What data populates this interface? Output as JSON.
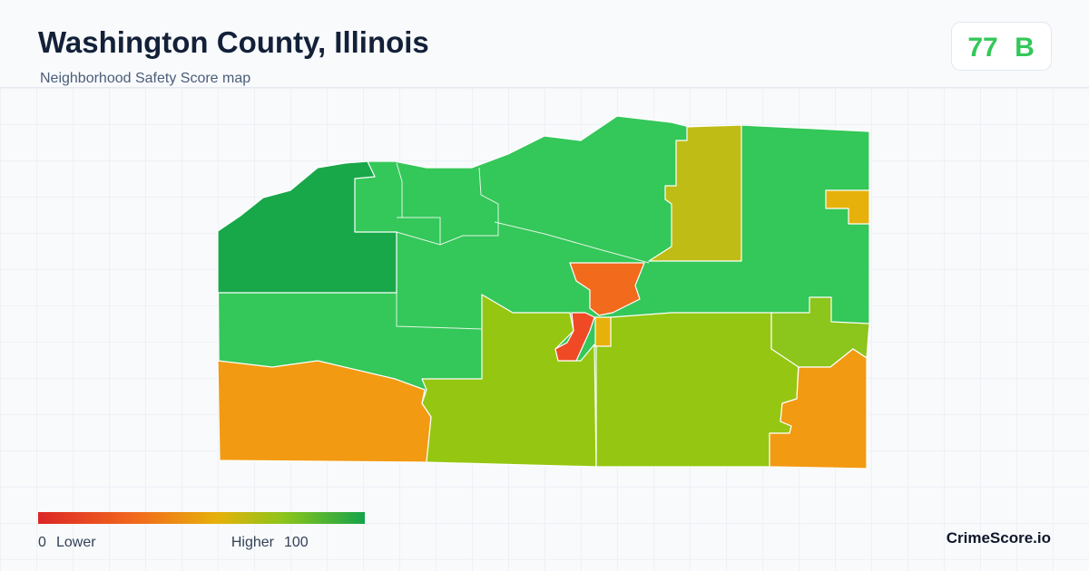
{
  "header": {
    "title": "Washington County, Illinois",
    "subtitle": "Neighborhood Safety Score map"
  },
  "score": {
    "value": 77,
    "grade": "B"
  },
  "legend": {
    "min": 0,
    "min_label": "Lower",
    "max_label": "Higher",
    "max": 100
  },
  "brand": "CrimeScore.io"
}
